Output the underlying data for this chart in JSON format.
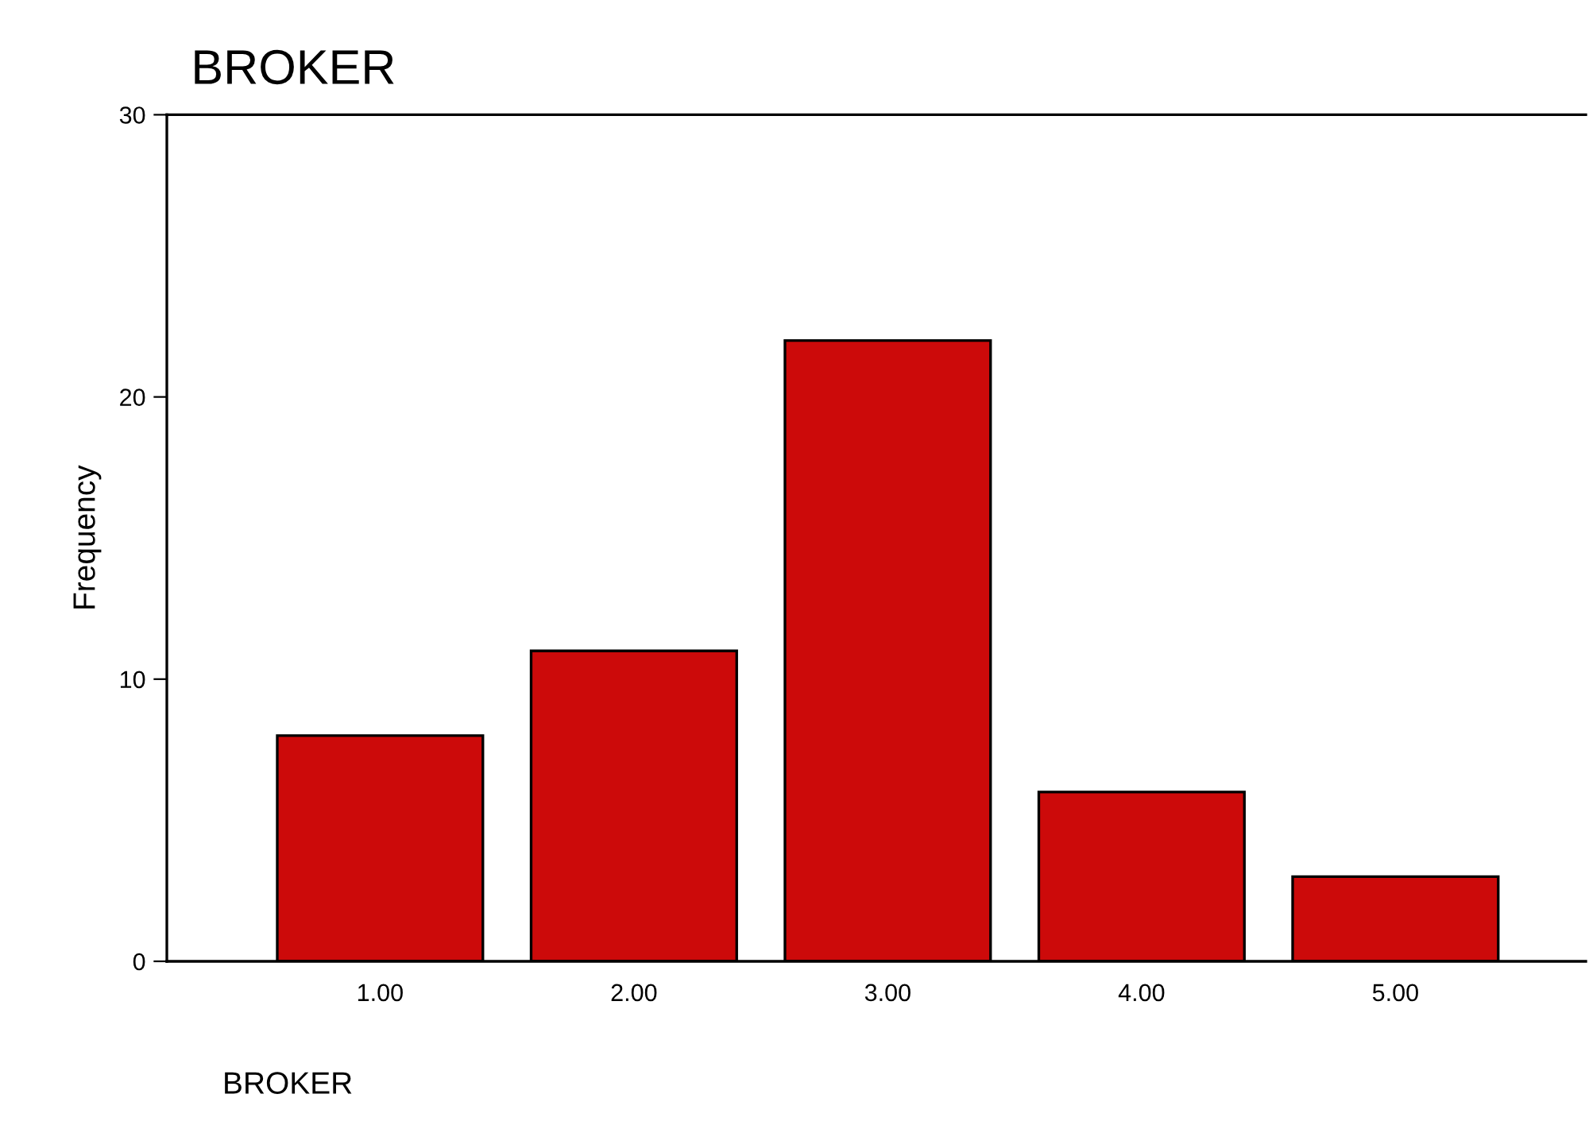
{
  "chart_data": {
    "type": "bar",
    "title": "BROKER",
    "xlabel": "BROKER",
    "ylabel": "Frequency",
    "categories": [
      "1.00",
      "2.00",
      "3.00",
      "4.00",
      "5.00"
    ],
    "values": [
      8,
      11,
      22,
      6,
      3
    ],
    "color": "#cc0a0a",
    "ylim": [
      0,
      30
    ],
    "yticks": [
      0,
      10,
      20,
      30
    ],
    "grid": false,
    "legend": false
  }
}
